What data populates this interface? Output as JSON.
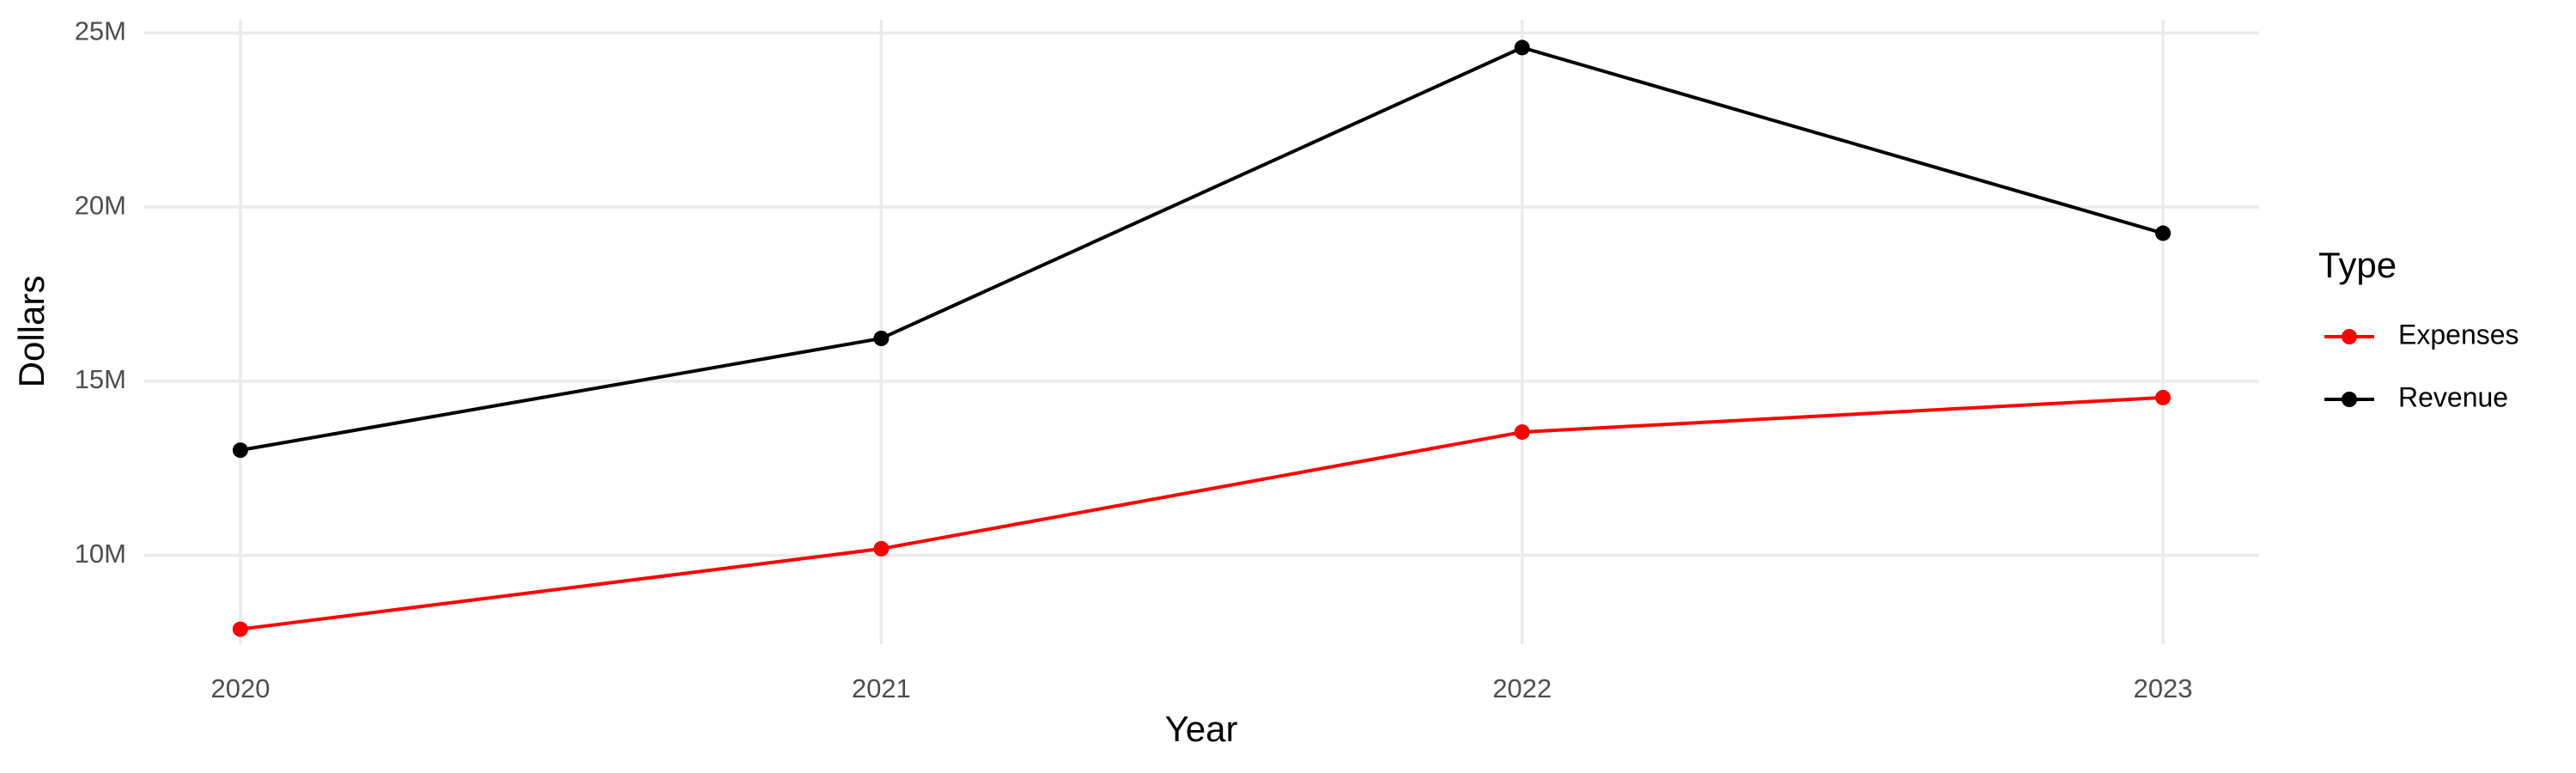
{
  "chart_data": {
    "type": "line",
    "x_label": "Year",
    "y_label": "Dollars",
    "legend_title": "Type",
    "x": [
      2020,
      2021,
      2022,
      2023
    ],
    "series": [
      {
        "name": "Expenses",
        "color": "#ff0000",
        "values": [
          7880000,
          10190000,
          13540000,
          14530000
        ]
      },
      {
        "name": "Revenue",
        "color": "#000000",
        "values": [
          13020000,
          16230000,
          24580000,
          19250000
        ]
      }
    ],
    "xlim": [
      2019.85,
      2023.15
    ],
    "xticks": [
      2020,
      2021,
      2022,
      2023
    ],
    "ylim": [
      7450000,
      25380000
    ],
    "yticks": [
      {
        "value": 10000000,
        "label": "10M"
      },
      {
        "value": 15000000,
        "label": "15M"
      },
      {
        "value": 20000000,
        "label": "20M"
      },
      {
        "value": 25000000,
        "label": "25M"
      }
    ],
    "grid": true,
    "legend": "right"
  }
}
